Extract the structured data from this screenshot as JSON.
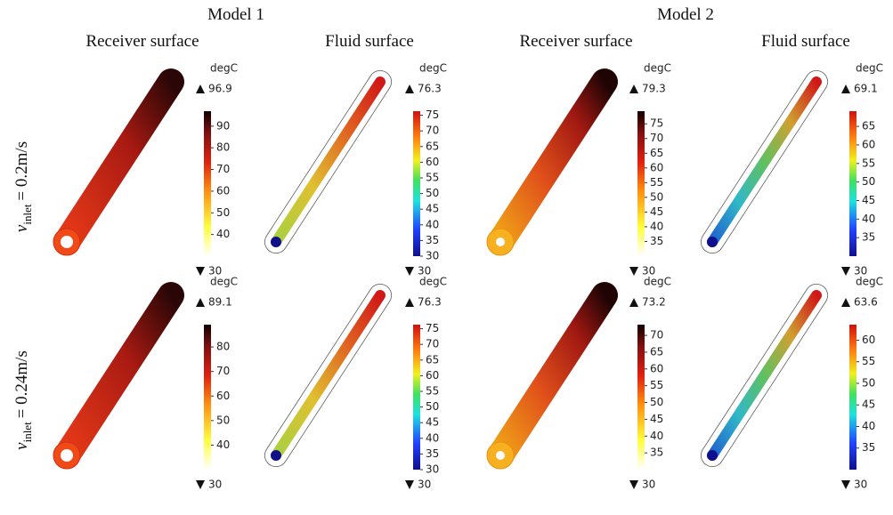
{
  "models": [
    {
      "title": "Model 1",
      "columns": [
        "Receiver surface",
        "Fluid surface"
      ]
    },
    {
      "title": "Model 2",
      "columns": [
        "Receiver surface",
        "Fluid surface"
      ]
    }
  ],
  "rows": [
    {
      "label": {
        "symbol": "v",
        "subscript": "inlet",
        "value": "= 0.2m/s"
      }
    },
    {
      "label": {
        "symbol": "v",
        "subscript": "inlet",
        "value": "= 0.24m/s"
      }
    }
  ],
  "panels": [
    [
      {
        "unit": "degC",
        "max": 96.9,
        "min": 30,
        "ticks": [
          90,
          80,
          70,
          60,
          50,
          40
        ]
      },
      {
        "unit": "degC",
        "max": 76.3,
        "min": 30,
        "ticks": [
          75,
          70,
          65,
          60,
          55,
          50,
          45,
          40,
          35,
          30
        ]
      },
      {
        "unit": "degC",
        "max": 79.3,
        "min": 30,
        "ticks": [
          75,
          70,
          65,
          60,
          55,
          50,
          45,
          40,
          35
        ]
      },
      {
        "unit": "degC",
        "max": 69.1,
        "min": 30,
        "ticks": [
          65,
          60,
          55,
          50,
          45,
          40,
          35
        ]
      }
    ],
    [
      {
        "unit": "degC",
        "max": 89.1,
        "min": 30,
        "ticks": [
          80,
          70,
          60,
          50,
          40
        ]
      },
      {
        "unit": "degC",
        "max": 76.3,
        "min": 30,
        "ticks": [
          75,
          70,
          65,
          60,
          55,
          50,
          45,
          40,
          35,
          30
        ]
      },
      {
        "unit": "degC",
        "max": 73.2,
        "min": 30,
        "ticks": [
          70,
          65,
          60,
          55,
          50,
          45,
          40,
          35
        ]
      },
      {
        "unit": "degC",
        "max": 63.6,
        "min": 30,
        "ticks": [
          60,
          55,
          50,
          45,
          40,
          35
        ]
      }
    ]
  ]
}
